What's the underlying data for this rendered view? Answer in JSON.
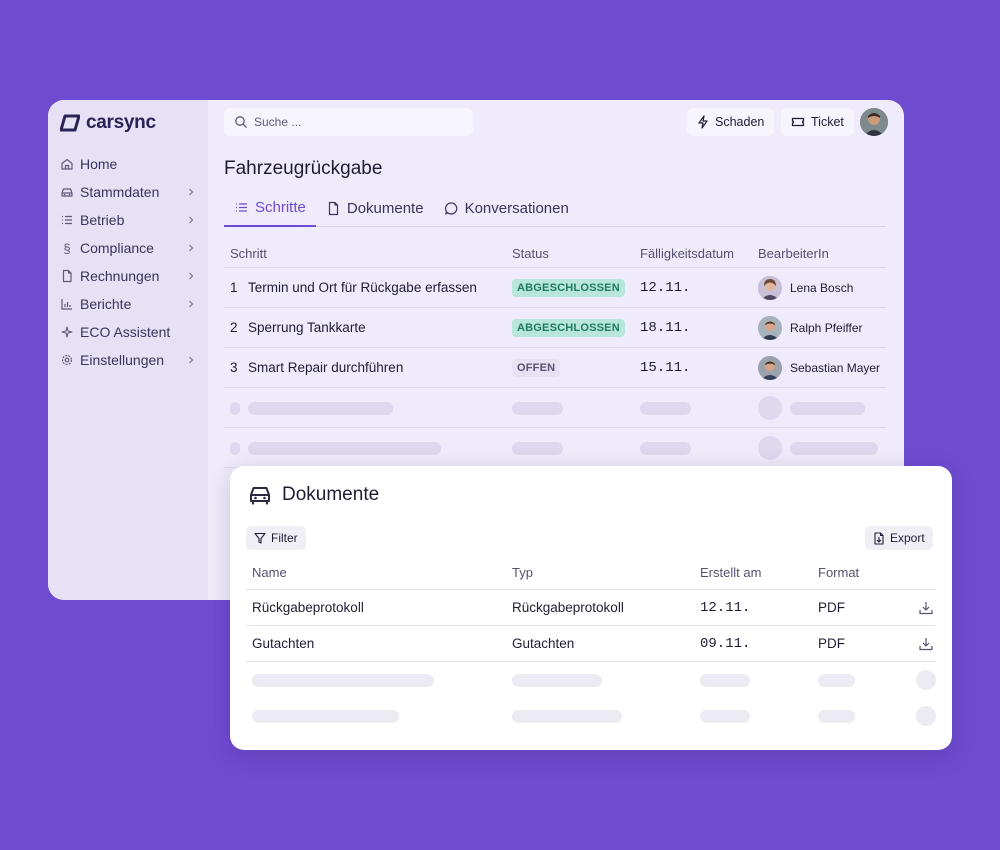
{
  "app": {
    "logo_text": "carsync"
  },
  "sidebar": {
    "items": [
      {
        "label": "Home",
        "icon": "home-icon",
        "has_children": false
      },
      {
        "label": "Stammdaten",
        "icon": "car-icon",
        "has_children": true
      },
      {
        "label": "Betrieb",
        "icon": "list-icon",
        "has_children": true
      },
      {
        "label": "Compliance",
        "icon": "paragraph-icon",
        "has_children": true
      },
      {
        "label": "Rechnungen",
        "icon": "file-icon",
        "has_children": true
      },
      {
        "label": "Berichte",
        "icon": "bar-chart-icon",
        "has_children": true
      },
      {
        "label": "ECO Assistent",
        "icon": "sparkle-icon",
        "has_children": false
      },
      {
        "label": "Einstellungen",
        "icon": "gear-icon",
        "has_children": true
      }
    ]
  },
  "topbar": {
    "search_placeholder": "Suche ...",
    "damage_label": "Schaden",
    "ticket_label": "Ticket"
  },
  "main": {
    "title": "Fahrzeugrückgabe",
    "tabs": [
      {
        "label": "Schritte",
        "icon": "list-icon",
        "active": true
      },
      {
        "label": "Dokumente",
        "icon": "file-icon",
        "active": false
      },
      {
        "label": "Konversationen",
        "icon": "chat-icon",
        "active": false
      }
    ],
    "steps_table": {
      "headers": {
        "step": "Schritt",
        "status": "Status",
        "due": "Fälligkeitsdatum",
        "assignee": "BearbeiterIn"
      },
      "rows": [
        {
          "num": "1",
          "step": "Termin und Ort für Rückgabe erfassen",
          "status": "ABGESCHLOSSEN",
          "done": true,
          "due": "12.11.",
          "assignee": "Lena Bosch"
        },
        {
          "num": "2",
          "step": "Sperrung Tankkarte",
          "status": "ABGESCHLOSSEN",
          "done": true,
          "due": "18.11.",
          "assignee": "Ralph Pfeiffer"
        },
        {
          "num": "3",
          "step": "Smart Repair durchführen",
          "status": "OFFEN",
          "done": false,
          "due": "15.11.",
          "assignee": "Sebastian Mayer"
        }
      ]
    }
  },
  "documents_card": {
    "title": "Dokumente",
    "filter_label": "Filter",
    "export_label": "Export",
    "headers": {
      "name": "Name",
      "type": "Typ",
      "created": "Erstellt am",
      "format": "Format"
    },
    "rows": [
      {
        "name": "Rückgabeprotokoll",
        "type": "Rückgabeprotokoll",
        "created": "12.11.",
        "format": "PDF"
      },
      {
        "name": "Gutachten",
        "type": "Gutachten",
        "created": "09.11.",
        "format": "PDF"
      }
    ]
  },
  "colors": {
    "background": "#6f4bd0",
    "accent": "#6f4bd0",
    "done_badge": "#b9e6da",
    "open_badge": "#e6e1f3"
  }
}
